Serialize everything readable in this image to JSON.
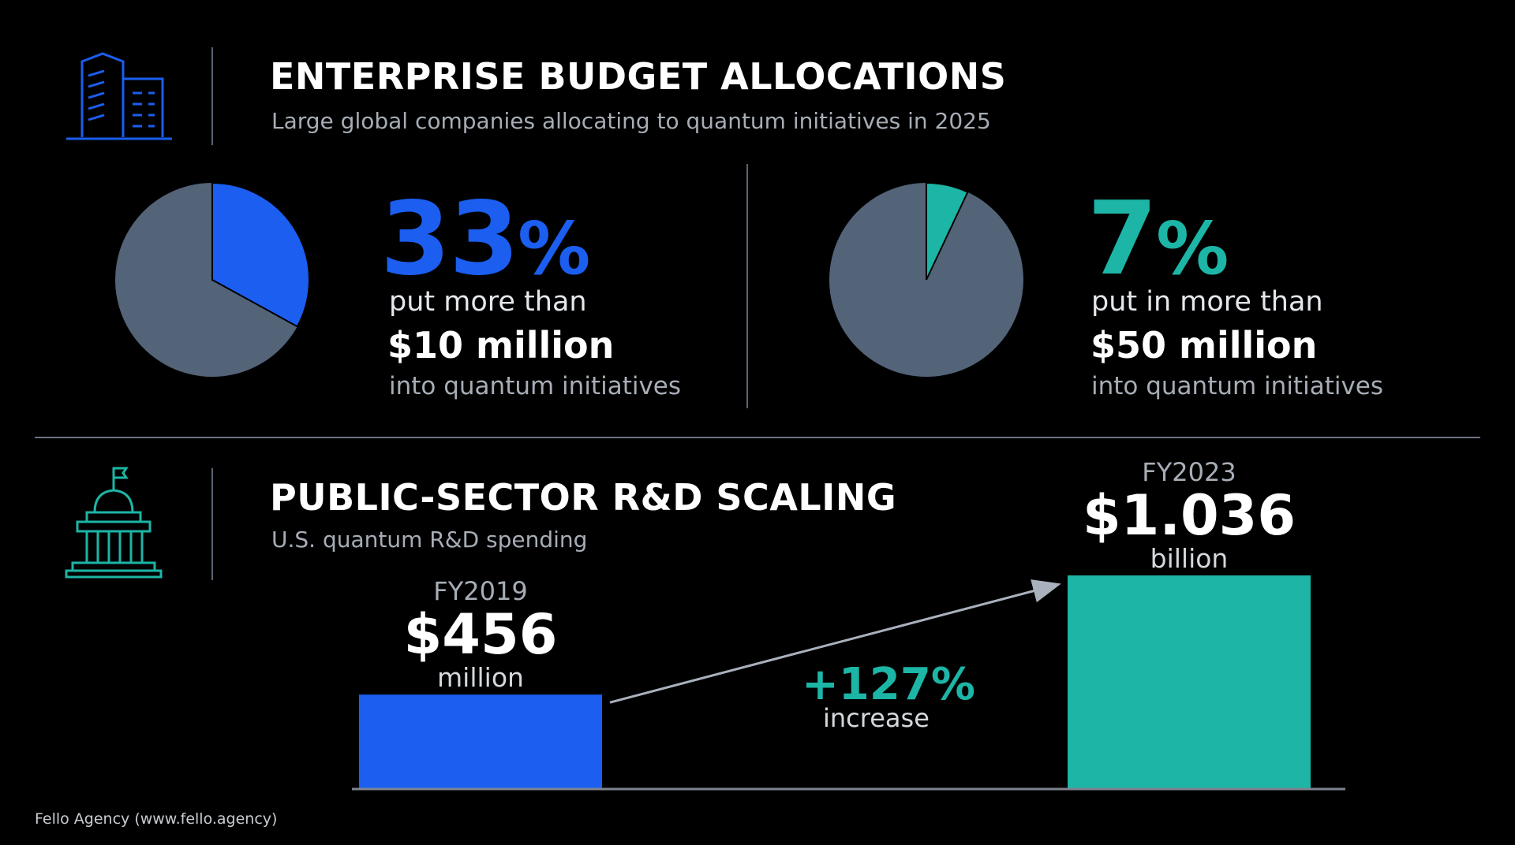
{
  "colors": {
    "background": "#000000",
    "blue": "#1b5ef0",
    "teal": "#1cb5a6",
    "pie_rest": "#536378",
    "text_muted": "#a7adb6"
  },
  "enterprise": {
    "icon": "office-buildings-icon",
    "title": "ENTERPRISE BUDGET ALLOCATIONS",
    "subtitle": "Large global companies allocating to quantum initiatives in 2025",
    "stats": [
      {
        "value": "33",
        "unit": "%",
        "line1": "put more than",
        "line2": "$10 million",
        "line3": "into quantum initiatives"
      },
      {
        "value": "7",
        "unit": "%",
        "line1": "put in more than",
        "line2": "$50 million",
        "line3": "into quantum initiatives"
      }
    ]
  },
  "public_sector": {
    "icon": "capitol-building-icon",
    "title": "PUBLIC-SECTOR R&D SCALING",
    "subtitle": "U.S. quantum R&D spending",
    "bars": [
      {
        "year": "FY2019",
        "value_label": "$456",
        "unit_label": "million"
      },
      {
        "year": "FY2023",
        "value_label": "$1.036",
        "unit_label": "billion"
      }
    ],
    "change": {
      "value": "+127%",
      "label": "increase"
    }
  },
  "chart_data": [
    {
      "type": "pie",
      "labels": [
        "put more than $10 million",
        "rest"
      ],
      "values": [
        33,
        67
      ],
      "colors": [
        "#1b5ef0",
        "#536378"
      ]
    },
    {
      "type": "pie",
      "labels": [
        "put in more than $50 million",
        "rest"
      ],
      "values": [
        7,
        93
      ],
      "colors": [
        "#1cb5a6",
        "#536378"
      ]
    },
    {
      "type": "bar",
      "title": "U.S. quantum R&D spending",
      "categories": [
        "FY2019",
        "FY2023"
      ],
      "values": [
        456,
        1036
      ],
      "units": "million USD",
      "colors": [
        "#1b5ef0",
        "#1cb5a6"
      ]
    }
  ],
  "footer": {
    "credit": "Fello Agency (www.fello.agency)"
  }
}
